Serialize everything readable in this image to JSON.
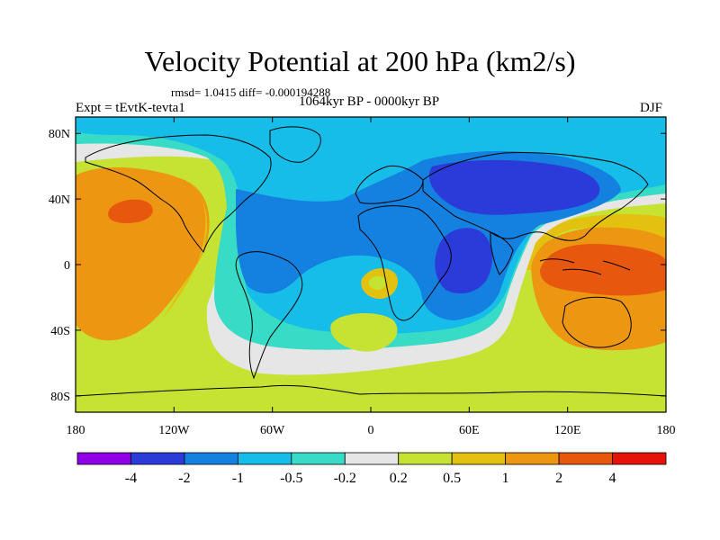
{
  "figure": {
    "title": "Velocity Potential at 200 hPa (km2/s)",
    "stats_line": "rmsd= 1.0415 diff= -0.000194288",
    "experiment_label": "Expt = tEvtK-tevta1",
    "period_label": "1064kyr BP - 0000kyr BP",
    "season_label": "DJF"
  },
  "map": {
    "projection": "cylindrical equidistant",
    "lon_range": [
      -180,
      180
    ],
    "lat_range": [
      -90,
      90
    ],
    "lat_ticks": [
      {
        "value": 80,
        "label": "80N"
      },
      {
        "value": 40,
        "label": "40N"
      },
      {
        "value": 0,
        "label": "0"
      },
      {
        "value": -40,
        "label": "40S"
      },
      {
        "value": -80,
        "label": "80S"
      }
    ],
    "lon_ticks": [
      {
        "value": -180,
        "label": "180"
      },
      {
        "value": -120,
        "label": "120W"
      },
      {
        "value": -60,
        "label": "60W"
      },
      {
        "value": 0,
        "label": "0"
      },
      {
        "value": 60,
        "label": "60E"
      },
      {
        "value": 120,
        "label": "120E"
      },
      {
        "value": 180,
        "label": "180"
      }
    ]
  },
  "colorbar": {
    "colors": [
      "#8f00e8",
      "#2b3bd9",
      "#1480e0",
      "#16bde8",
      "#38dcc6",
      "#e6e6e6",
      "#c6e233",
      "#e2c10f",
      "#ed9612",
      "#e8570e",
      "#e61209"
    ],
    "labels": [
      "-4",
      "-2",
      "-1",
      "-0.5",
      "-0.2",
      "0.2",
      "0.5",
      "1",
      "2",
      "4"
    ]
  },
  "chart_data": {
    "type": "heatmap",
    "title": "Velocity Potential at 200 hPa (km2/s)",
    "variable": "200 hPa velocity potential difference",
    "units": "km2/s",
    "season": "DJF",
    "experiment": "tEvtK-tevta1",
    "comparison": "1064kyr BP - 0000kyr BP",
    "rmsd": 1.0415,
    "diff": -0.000194288,
    "contour_levels": [
      -4,
      -2,
      -1,
      -0.5,
      -0.2,
      0.2,
      0.5,
      1,
      2,
      4
    ],
    "xlim": [
      -180,
      180
    ],
    "ylim": [
      -90,
      90
    ],
    "features": [
      {
        "region": "Maritime Continent / western Pacific",
        "center": [
          135,
          0
        ],
        "value_range": [
          2,
          4
        ]
      },
      {
        "region": "Australia",
        "center": [
          135,
          -25
        ],
        "value_range": [
          1,
          2
        ]
      },
      {
        "region": "Eastern North Pacific",
        "center": [
          -140,
          30
        ],
        "value_range": [
          1,
          2
        ]
      },
      {
        "region": "Subtropical North Pacific peak",
        "center": [
          -145,
          27
        ],
        "value_range": [
          2,
          4
        ]
      },
      {
        "region": "South Pacific",
        "center": [
          -150,
          -25
        ],
        "value_range": [
          1,
          2
        ]
      },
      {
        "region": "East Africa / Arabian Sea",
        "center": [
          50,
          5
        ],
        "value_range": [
          -4,
          -2
        ]
      },
      {
        "region": "Eurasia",
        "center": [
          60,
          50
        ],
        "value_range": [
          -2,
          -1
        ]
      },
      {
        "region": "Tibet / China",
        "center": [
          105,
          35
        ],
        "value_range": [
          -4,
          -2
        ]
      },
      {
        "region": "Tropical Atlantic / South America",
        "center": [
          -45,
          0
        ],
        "value_range": [
          -2,
          -1
        ]
      },
      {
        "region": "South Atlantic",
        "center": [
          -5,
          -5
        ],
        "value_range": [
          0.5,
          1
        ]
      },
      {
        "region": "Southern Ocean (south of Africa)",
        "center": [
          -10,
          -35
        ],
        "value_range": [
          0.2,
          0.5
        ]
      },
      {
        "region": "Antarctica / high southern latitudes",
        "center": [
          0,
          -80
        ],
        "value_range": [
          0.2,
          0.5
        ]
      }
    ]
  }
}
